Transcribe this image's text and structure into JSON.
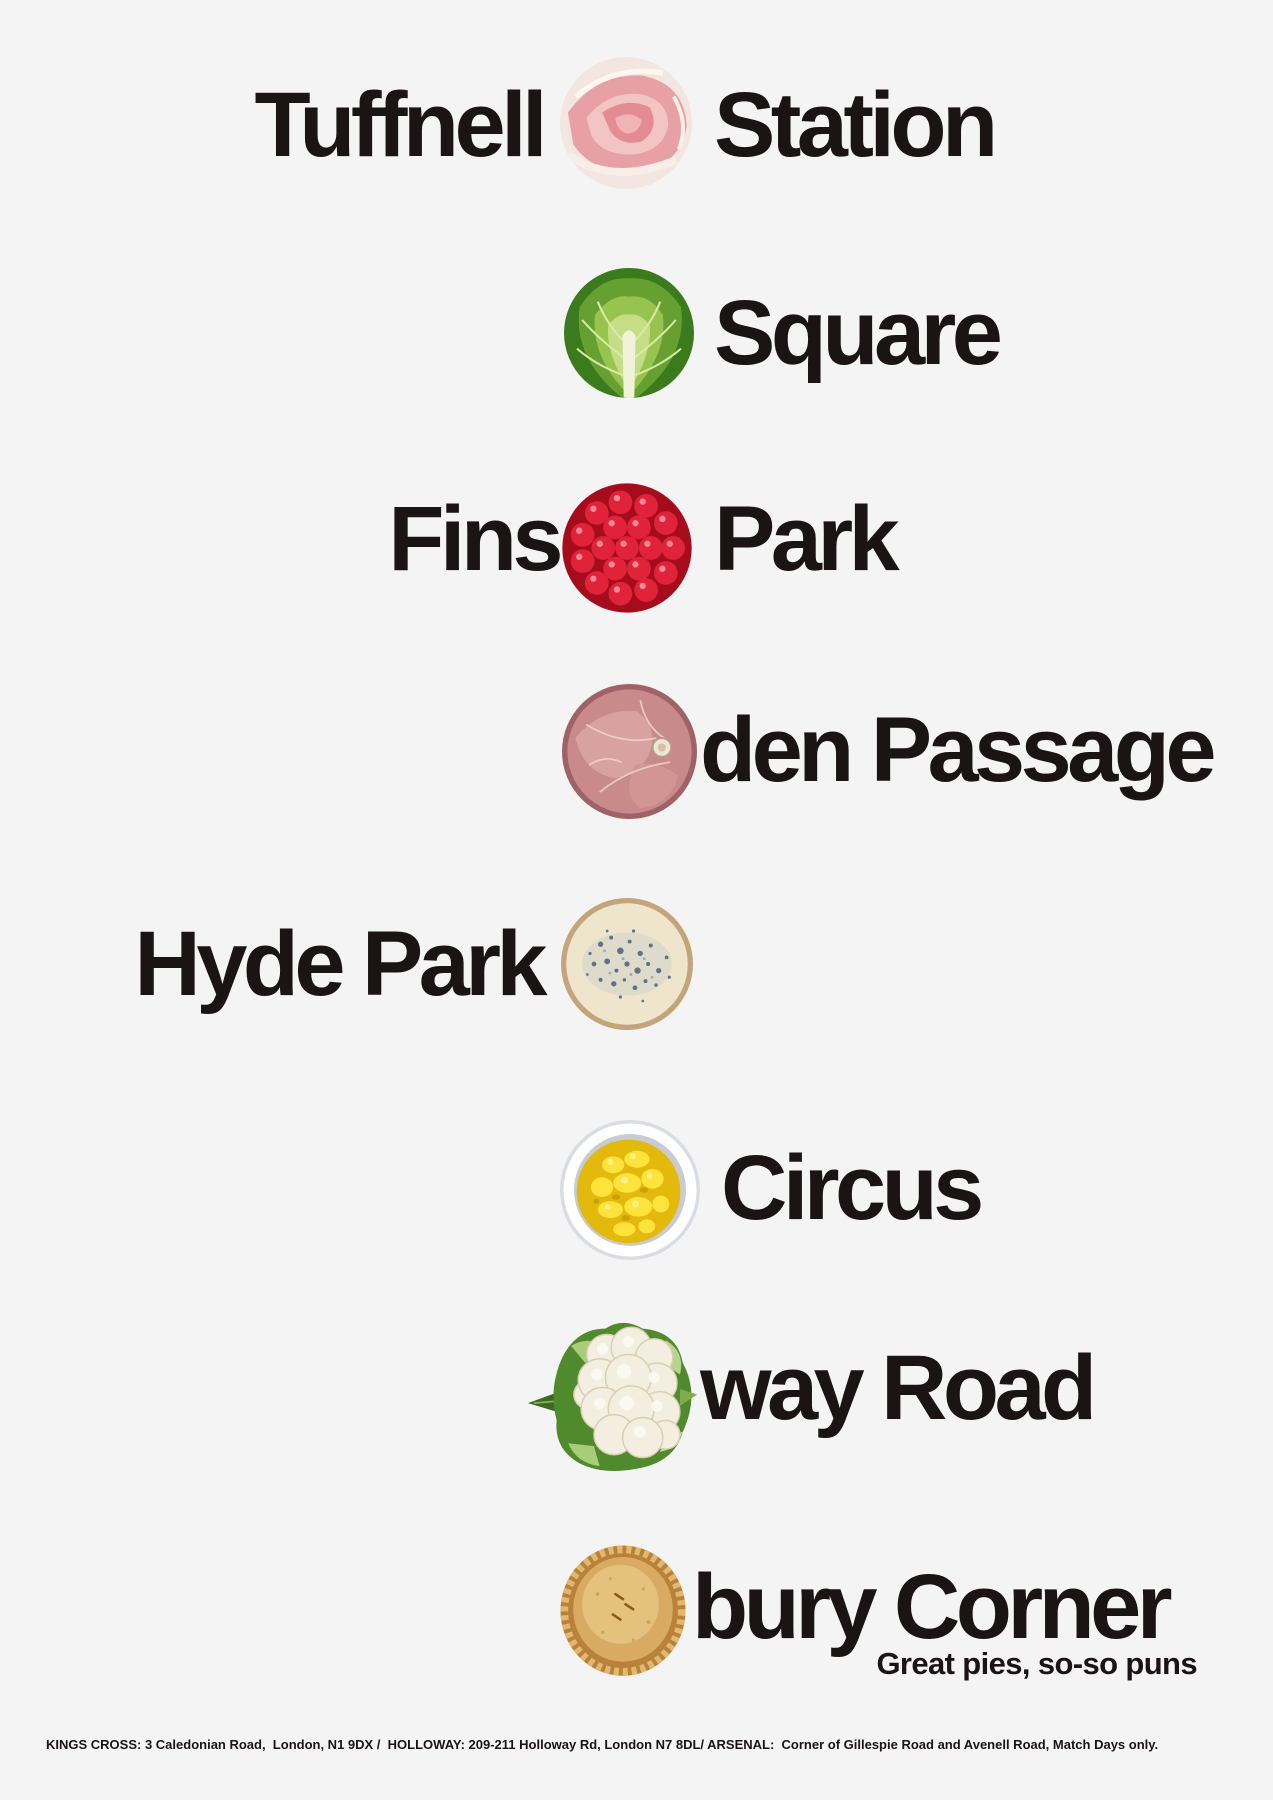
{
  "poster": {
    "background": "#f4f4f4",
    "text_color": "#1a1414"
  },
  "rows": [
    {
      "left": "Tuffnell",
      "right": "Station",
      "icon": "ham-slice-icon"
    },
    {
      "right": "Square",
      "icon": "brussels-sprout-icon"
    },
    {
      "left": "Fins",
      "right": "Park",
      "icon": "raspberry-icon"
    },
    {
      "right": "den Passage",
      "icon": "gammon-ham-icon"
    },
    {
      "left": "Hyde Park",
      "icon": "stilton-cheese-icon"
    },
    {
      "right": "Circus",
      "icon": "sweetcorn-bowl-icon"
    },
    {
      "right": "way Road",
      "icon": "cauliflower-icon"
    },
    {
      "right": "bury Corner",
      "icon": "pie-icon"
    }
  ],
  "tagline": "Great pies, so-so puns",
  "footer": "KINGS CROSS: 3 Caledonian Road,  London, N1 9DX /  HOLLOWAY: 209-211 Holloway Rd, London N7 8DL/ ARSENAL:  Corner of Gillespie Road and Avenell Road, Match Days only."
}
